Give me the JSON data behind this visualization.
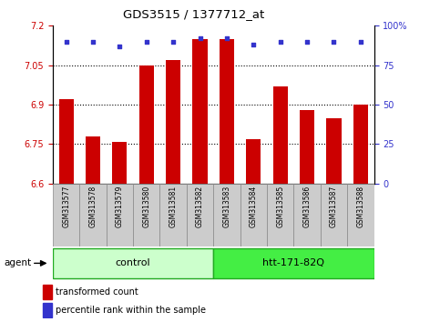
{
  "title": "GDS3515 / 1377712_at",
  "categories": [
    "GSM313577",
    "GSM313578",
    "GSM313579",
    "GSM313580",
    "GSM313581",
    "GSM313582",
    "GSM313583",
    "GSM313584",
    "GSM313585",
    "GSM313586",
    "GSM313587",
    "GSM313588"
  ],
  "bar_values": [
    6.92,
    6.78,
    6.76,
    7.05,
    7.07,
    7.15,
    7.15,
    6.77,
    6.97,
    6.88,
    6.85,
    6.9
  ],
  "bar_bottom": 6.6,
  "percentile_values": [
    90,
    90,
    87,
    90,
    90,
    92,
    92,
    88,
    90,
    90,
    90,
    90
  ],
  "ylim_left": [
    6.6,
    7.2
  ],
  "ylim_right": [
    0,
    100
  ],
  "yticks_left": [
    6.6,
    6.75,
    6.9,
    7.05,
    7.2
  ],
  "yticks_right": [
    0,
    25,
    50,
    75,
    100
  ],
  "ytick_labels_left": [
    "6.6",
    "6.75",
    "6.9",
    "7.05",
    "7.2"
  ],
  "ytick_labels_right": [
    "0",
    "25",
    "50",
    "75",
    "100%"
  ],
  "hlines": [
    6.75,
    6.9,
    7.05
  ],
  "bar_color": "#CC0000",
  "dot_color": "#3333CC",
  "agent_label": "agent",
  "group1_label": "control",
  "group2_label": "htt-171-82Q",
  "group1_indices": [
    0,
    1,
    2,
    3,
    4,
    5
  ],
  "group2_indices": [
    6,
    7,
    8,
    9,
    10,
    11
  ],
  "group1_color": "#ccffcc",
  "group2_color": "#44ee44",
  "group_border_color": "#22aa22",
  "legend_bar_label": "transformed count",
  "legend_dot_label": "percentile rank within the sample",
  "tick_label_color_left": "#CC0000",
  "tick_label_color_right": "#3333CC",
  "sample_box_color": "#cccccc",
  "sample_box_edge": "#888888"
}
